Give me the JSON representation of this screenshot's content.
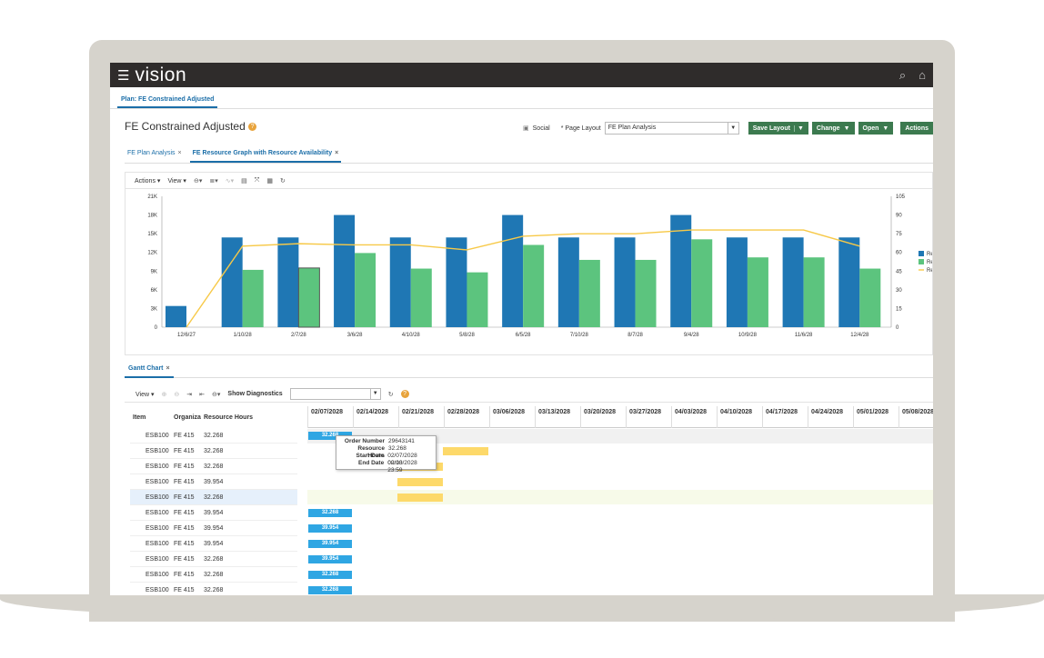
{
  "app": {
    "brand": "vision"
  },
  "nav": {
    "tab_label": "Plan: FE Constrained Adjusted"
  },
  "page": {
    "title": "FE Constrained Adjusted",
    "social_label": "Social",
    "page_layout_label": "Page Layout",
    "page_layout_value": "FE Plan Analysis",
    "save_layout": "Save Layout",
    "change": "Change",
    "open": "Open",
    "actions": "Actions"
  },
  "subtabs": [
    {
      "label": "FE Plan Analysis"
    },
    {
      "label": "FE Resource Graph with Resource Availability"
    }
  ],
  "chart_toolbar": {
    "actions": "Actions",
    "view": "View"
  },
  "chart_data": {
    "type": "bar",
    "categories": [
      "12/6/27",
      "1/10/28",
      "2/7/28",
      "3/6/28",
      "4/10/28",
      "5/8/28",
      "6/5/28",
      "7/10/28",
      "8/7/28",
      "9/4/28",
      "10/9/28",
      "11/6/28",
      "12/4/28"
    ],
    "series": [
      {
        "name": "Re",
        "type": "bar",
        "color": "#1f77b4",
        "values": [
          3400,
          14400,
          14400,
          18000,
          14400,
          14400,
          18000,
          14400,
          14400,
          18000,
          14400,
          14400,
          14400
        ]
      },
      {
        "name": "Re",
        "type": "bar",
        "color": "#5cc47e",
        "values": [
          null,
          9200,
          9500,
          11900,
          9400,
          8800,
          13200,
          10800,
          10800,
          14100,
          11200,
          11200,
          9400
        ]
      },
      {
        "name": "Re",
        "type": "line",
        "axis": "right",
        "color": "#f7c948",
        "values": [
          0,
          65,
          67,
          66,
          66,
          62,
          73,
          75,
          75,
          78,
          78,
          78,
          65
        ]
      }
    ],
    "yticks": [
      "0",
      "3K",
      "6K",
      "9K",
      "12K",
      "15K",
      "18K",
      "21K"
    ],
    "y2ticks": [
      "0",
      "15",
      "30",
      "45",
      "60",
      "75",
      "90",
      "105"
    ],
    "ylim": [
      0,
      21000
    ],
    "y2lim": [
      0,
      105
    ],
    "legend_position": "right"
  },
  "gantt": {
    "tab_label": "Gantt Chart",
    "view_label": "View",
    "show_diagnostics": "Show Diagnostics",
    "col_item": "Item",
    "col_org": "Organiza",
    "col_hours": "Resource Hours",
    "dates": [
      "02/07/2028",
      "02/14/2028",
      "02/21/2028",
      "02/28/2028",
      "03/06/2028",
      "03/13/2028",
      "03/20/2028",
      "03/27/2028",
      "04/03/2028",
      "04/10/2028",
      "04/17/2028",
      "04/24/2028",
      "05/01/2028",
      "05/08/2028"
    ],
    "rows": [
      {
        "item": "ESB100",
        "org": "FE 415",
        "hours": "32.268"
      },
      {
        "item": "ESB100",
        "org": "FE 415",
        "hours": "32.268"
      },
      {
        "item": "ESB100",
        "org": "FE 415",
        "hours": "32.268"
      },
      {
        "item": "ESB100",
        "org": "FE 415",
        "hours": "39.954"
      },
      {
        "item": "ESB100",
        "org": "FE 415",
        "hours": "32.268"
      },
      {
        "item": "ESB100",
        "org": "FE 415",
        "hours": "39.954"
      },
      {
        "item": "ESB100",
        "org": "FE 415",
        "hours": "39.954"
      },
      {
        "item": "ESB100",
        "org": "FE 415",
        "hours": "39.954"
      },
      {
        "item": "ESB100",
        "org": "FE 415",
        "hours": "32.268"
      },
      {
        "item": "ESB100",
        "org": "FE 415",
        "hours": "32.268"
      },
      {
        "item": "ESB100",
        "org": "FE 415",
        "hours": "32.268"
      }
    ],
    "bar_labels": [
      "32.268",
      "39.954",
      "39.954",
      "39.954",
      "32.268",
      "32.268",
      "32.268"
    ],
    "tooltip": {
      "order_number_label": "Order Number",
      "order_number": "29643141",
      "hours_label": "Resource Hours",
      "hours": "32.268",
      "start_label": "Start Date",
      "start": "02/07/2028 00:00",
      "end_label": "End Date",
      "end": "02/13/2028 23:59"
    }
  }
}
